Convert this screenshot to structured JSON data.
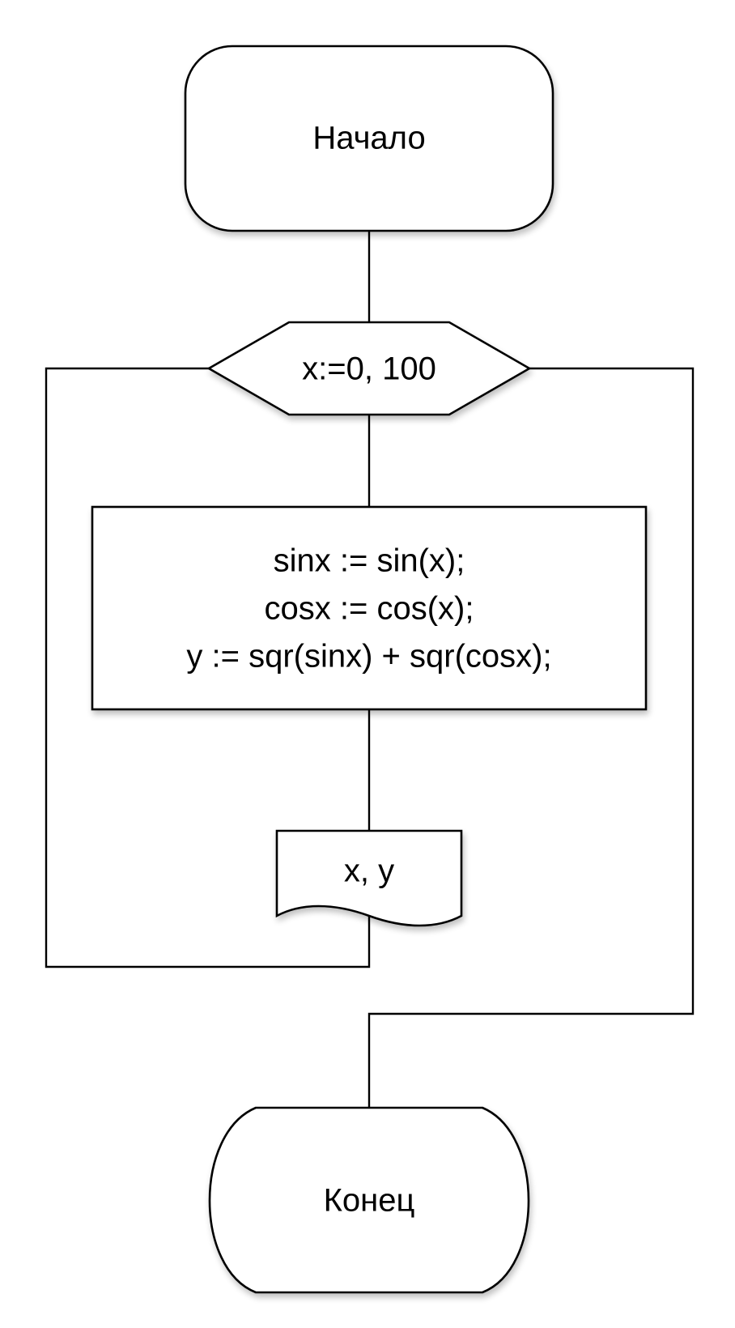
{
  "flowchart": {
    "start": {
      "label": "Начало"
    },
    "loop": {
      "label": "x:=0, 100"
    },
    "process": {
      "lines": [
        "sinx := sin(x);",
        "cosx := cos(x);",
        "y := sqr(sinx) + sqr(cosx);"
      ]
    },
    "output": {
      "label": "x, y"
    },
    "end": {
      "label": "Конец"
    }
  }
}
